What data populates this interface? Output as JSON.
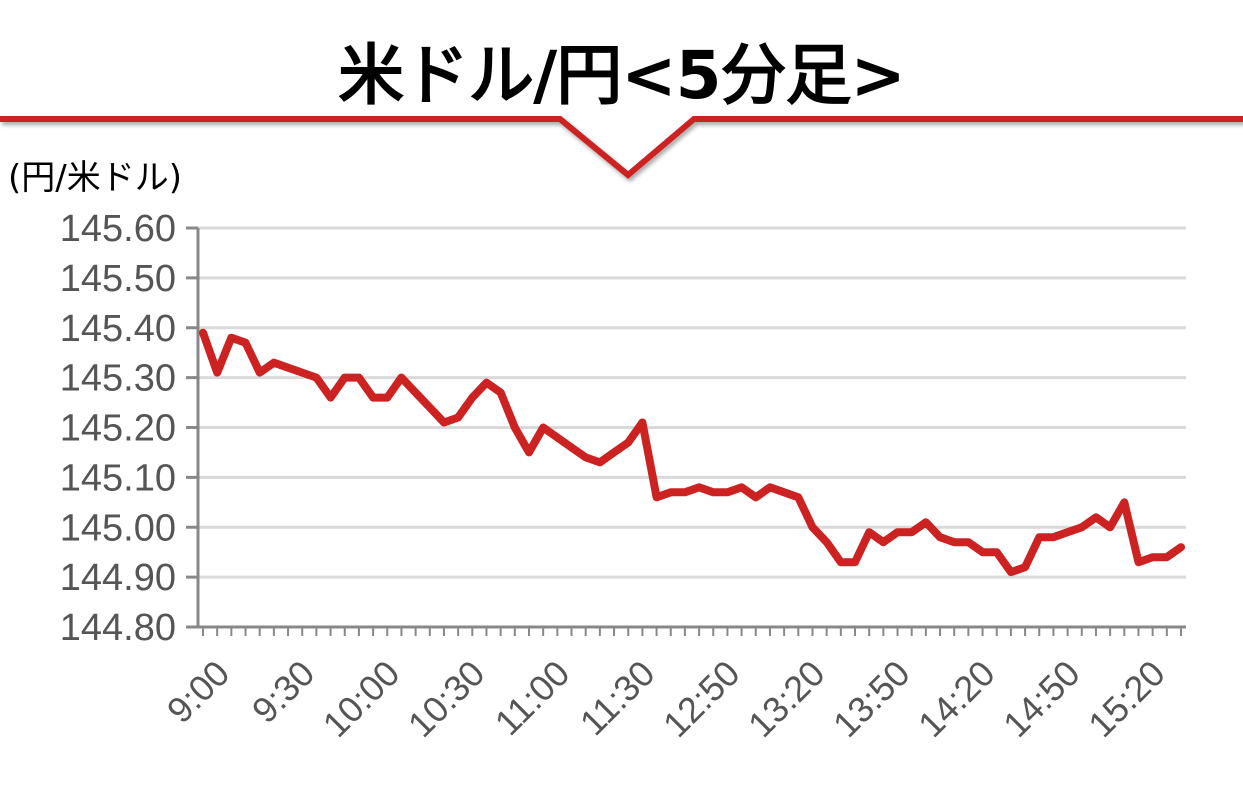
{
  "title": "米ドル/円<5分足>",
  "colors": {
    "line": "#cc2222",
    "banner": "#cc2222",
    "grid": "#d9d9d9",
    "axis": "#888888"
  },
  "chart_data": {
    "type": "line",
    "title": "米ドル/円<5分足>",
    "ylabel": "(円/米ドル)",
    "xlabel": "",
    "ylim": [
      144.8,
      145.6
    ],
    "y_ticks": [
      "145.60",
      "145.50",
      "145.40",
      "145.30",
      "145.20",
      "145.10",
      "145.00",
      "144.90",
      "144.80"
    ],
    "x_tick_labels": [
      "9:00",
      "9:30",
      "10:00",
      "10:30",
      "11:00",
      "11:30",
      "12:50",
      "13:20",
      "13:50",
      "14:20",
      "14:50",
      "15:20"
    ],
    "grid": true,
    "series": [
      {
        "values": [
          145.39,
          145.31,
          145.38,
          145.37,
          145.31,
          145.33,
          145.32,
          145.31,
          145.3,
          145.26,
          145.3,
          145.3,
          145.26,
          145.26,
          145.3,
          145.27,
          145.24,
          145.21,
          145.22,
          145.26,
          145.29,
          145.27,
          145.2,
          145.15,
          145.2,
          145.18,
          145.16,
          145.14,
          145.13,
          145.15,
          145.17,
          145.21,
          145.06,
          145.07,
          145.07,
          145.08,
          145.07,
          145.07,
          145.08,
          145.06,
          145.08,
          145.07,
          145.06,
          145.0,
          144.97,
          144.93,
          144.93,
          144.99,
          144.97,
          144.99,
          144.99,
          145.01,
          144.98,
          144.97,
          144.97,
          144.95,
          144.95,
          144.91,
          144.92,
          144.98,
          144.98,
          144.99,
          145.0,
          145.02,
          145.0,
          145.05,
          144.93,
          144.94,
          144.94,
          144.96
        ]
      }
    ]
  }
}
